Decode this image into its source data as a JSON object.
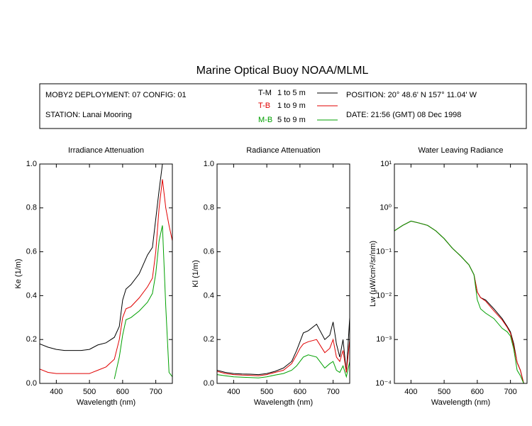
{
  "header": {
    "title": "Marine Optical Buoy NOAA/MLML",
    "deployment": "MOBY2 DEPLOYMENT: 07 CONFIG: 01",
    "station": "STATION: Lanai Mooring",
    "position": "POSITION: 20° 48.6' N   157° 11.04' W",
    "date": "DATE: 21:56 (GMT) 08 Dec 1998"
  },
  "legend": [
    {
      "name": "T-M",
      "range": "1 to 5  m",
      "color": "#000000"
    },
    {
      "name": "T-B",
      "range": "1 to 9  m",
      "color": "#e00000"
    },
    {
      "name": "M-B",
      "range": "5 to 9  m",
      "color": "#00a000"
    }
  ],
  "chart_data": [
    {
      "type": "line",
      "title": "Irradiance Attenuation",
      "xlabel": "Wavelength (nm)",
      "ylabel": "Ke  (1/m)",
      "x": [
        350,
        375,
        400,
        425,
        450,
        475,
        500,
        525,
        550,
        575,
        590,
        600,
        610,
        625,
        650,
        675,
        690,
        700,
        710,
        720,
        730,
        740,
        750
      ],
      "xlim": [
        350,
        750
      ],
      "xticks": [
        400,
        500,
        600,
        700
      ],
      "ylim": [
        0,
        1
      ],
      "yticks": [
        {
          "value": 0,
          "label": "0.0"
        },
        0.2,
        0.4,
        0.6,
        0.8,
        {
          "value": 1,
          "label": "1.0"
        }
      ],
      "series": [
        {
          "color": "#000000",
          "values": [
            0.18,
            0.165,
            0.155,
            0.15,
            0.15,
            0.15,
            0.155,
            0.175,
            0.185,
            0.21,
            0.26,
            0.38,
            0.43,
            0.45,
            0.5,
            0.585,
            0.62,
            0.75,
            0.88,
            1.0,
            null,
            null,
            null
          ]
        },
        {
          "color": "#e00000",
          "values": [
            0.065,
            0.05,
            0.045,
            0.045,
            0.045,
            0.045,
            0.045,
            0.06,
            0.075,
            0.11,
            0.2,
            0.3,
            0.34,
            0.35,
            0.39,
            0.44,
            0.48,
            0.6,
            0.8,
            0.93,
            0.8,
            0.72,
            0.65
          ]
        },
        {
          "color": "#00a000",
          "values": [
            null,
            null,
            null,
            null,
            null,
            null,
            null,
            null,
            null,
            0.02,
            0.12,
            0.22,
            0.29,
            0.3,
            0.33,
            0.37,
            0.41,
            0.5,
            0.65,
            0.72,
            0.35,
            0.05,
            0.03
          ]
        }
      ]
    },
    {
      "type": "line",
      "title": "Radiance Attenuation",
      "xlabel": "Wavelength (nm)",
      "ylabel": "Kl  (1/m)",
      "x": [
        350,
        375,
        400,
        425,
        450,
        475,
        500,
        525,
        550,
        575,
        590,
        600,
        610,
        625,
        650,
        675,
        690,
        700,
        710,
        720,
        730,
        740,
        750
      ],
      "xlim": [
        350,
        750
      ],
      "xticks": [
        400,
        500,
        600,
        700
      ],
      "ylim": [
        0,
        1
      ],
      "yticks": [
        {
          "value": 0,
          "label": "0.0"
        },
        0.2,
        0.4,
        0.6,
        0.8,
        {
          "value": 1,
          "label": "1.0"
        }
      ],
      "series": [
        {
          "color": "#000000",
          "values": [
            0.06,
            0.05,
            0.045,
            0.043,
            0.042,
            0.04,
            0.045,
            0.055,
            0.07,
            0.1,
            0.15,
            0.19,
            0.23,
            0.24,
            0.27,
            0.2,
            0.22,
            0.28,
            0.18,
            0.12,
            0.2,
            0.05,
            0.3
          ]
        },
        {
          "color": "#e00000",
          "values": [
            0.055,
            0.045,
            0.04,
            0.038,
            0.037,
            0.035,
            0.04,
            0.05,
            0.06,
            0.09,
            0.13,
            0.16,
            0.18,
            0.19,
            0.2,
            0.14,
            0.16,
            0.2,
            0.12,
            0.1,
            0.15,
            0.05,
            0.2
          ]
        },
        {
          "color": "#00a000",
          "values": [
            0.04,
            0.035,
            0.03,
            0.028,
            0.027,
            0.025,
            0.03,
            0.038,
            0.045,
            0.06,
            0.08,
            0.1,
            0.12,
            0.13,
            0.12,
            0.07,
            0.09,
            0.1,
            0.06,
            0.05,
            0.08,
            0.03,
            0.1
          ]
        }
      ]
    },
    {
      "type": "line",
      "title": "Water Leaving Radiance",
      "xlabel": "Wavelength (nm)",
      "ylabel": "Lw  (µW/cm²/sr/nm)",
      "ylog": true,
      "x": [
        350,
        375,
        400,
        425,
        450,
        475,
        500,
        525,
        550,
        575,
        590,
        600,
        610,
        625,
        650,
        675,
        690,
        700,
        710,
        720,
        730,
        740,
        750
      ],
      "xlim": [
        350,
        750
      ],
      "xticks": [
        400,
        500,
        600,
        700
      ],
      "ylim": [
        0.0001,
        10
      ],
      "yticks": [
        {
          "value": 0.0001,
          "label": "10⁻⁴"
        },
        {
          "value": 0.001,
          "label": "10⁻³"
        },
        {
          "value": 0.01,
          "label": "10⁻²"
        },
        {
          "value": 0.1,
          "label": "10⁻¹"
        },
        {
          "value": 1,
          "label": "10⁰"
        },
        {
          "value": 10,
          "label": "10¹"
        }
      ],
      "series": [
        {
          "color": "#000000",
          "values": [
            0.3,
            0.4,
            0.5,
            0.45,
            0.4,
            0.3,
            0.2,
            0.12,
            0.08,
            0.05,
            0.03,
            0.012,
            0.009,
            0.008,
            0.005,
            0.003,
            0.002,
            0.0015,
            0.0008,
            0.0003,
            0.0002,
            0.0001,
            null
          ]
        },
        {
          "color": "#e00000",
          "values": [
            0.3,
            0.4,
            0.5,
            0.45,
            0.4,
            0.3,
            0.2,
            0.12,
            0.08,
            0.05,
            0.03,
            0.012,
            0.009,
            0.0075,
            0.0045,
            0.0028,
            0.0019,
            0.0014,
            0.0007,
            0.0003,
            0.0002,
            0.0001,
            null
          ]
        },
        {
          "color": "#00a000",
          "values": [
            0.3,
            0.4,
            0.5,
            0.45,
            0.4,
            0.3,
            0.2,
            0.12,
            0.08,
            0.05,
            0.03,
            0.008,
            0.005,
            0.004,
            0.003,
            0.0018,
            0.0015,
            0.0012,
            0.0006,
            0.0002,
            0.00015,
            0.0001,
            null
          ]
        }
      ]
    }
  ]
}
